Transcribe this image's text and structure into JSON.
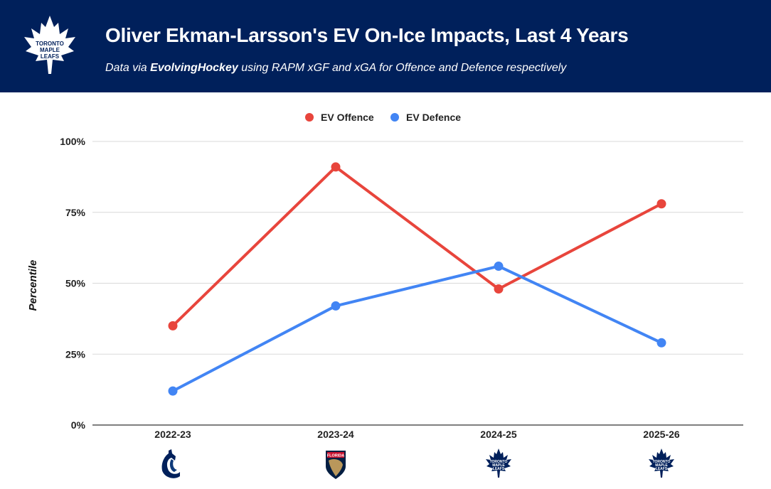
{
  "header": {
    "title": "Oliver Ekman-Larsson's EV On-Ice Impacts, Last 4 Years",
    "subtitle_prefix": "Data via ",
    "subtitle_source": "EvolvingHockey",
    "subtitle_suffix": " using RAPM xGF and xGA for Offence and Defence respectively",
    "logo": "toronto-maple-leafs-logo"
  },
  "chart_data": {
    "type": "line",
    "title": "Oliver Ekman-Larsson's EV On-Ice Impacts, Last 4 Years",
    "xlabel": "",
    "ylabel": "Percentile",
    "ylim": [
      0,
      100
    ],
    "yticks": [
      "0%",
      "25%",
      "50%",
      "75%",
      "100%"
    ],
    "categories": [
      "2022-23",
      "2023-24",
      "2024-25",
      "2025-26"
    ],
    "team_logos": [
      "vancouver-canucks",
      "florida-panthers",
      "toronto-maple-leafs",
      "toronto-maple-leafs"
    ],
    "legend_position": "top-center",
    "grid": true,
    "series": [
      {
        "name": "EV Offence",
        "color": "#e8453c",
        "values": [
          35,
          91,
          48,
          78
        ]
      },
      {
        "name": "EV Defence",
        "color": "#4285f4",
        "values": [
          12,
          42,
          56,
          29
        ]
      }
    ]
  }
}
